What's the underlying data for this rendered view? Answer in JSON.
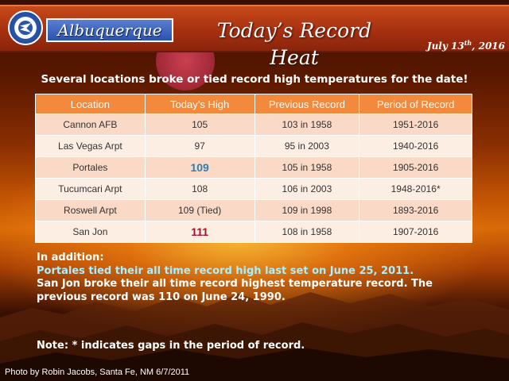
{
  "header": {
    "office": "Albuquerque",
    "title": "Today’s Record Heat",
    "date_prefix": "July 13",
    "date_suffix": "th",
    "date_year": ", 2016"
  },
  "subtitle": "Several locations broke or tied record high temperatures for the date!",
  "table": {
    "columns": [
      "Location",
      "Today’s High",
      "Previous Record",
      "Period of Record"
    ],
    "rows": [
      [
        "Cannon AFB",
        "105",
        "103 in 1958",
        "1951-2016"
      ],
      [
        "Las Vegas Arpt",
        "97",
        "95 in 2003",
        "1940-2016"
      ],
      [
        "Portales",
        "109",
        "105 in 1958",
        "1905-2016"
      ],
      [
        "Tucumcari Arpt",
        "108",
        "106 in 2003",
        "1948-2016*"
      ],
      [
        "Roswell Arpt",
        "109 (Tied)",
        "109 in 1998",
        "1893-2016"
      ],
      [
        "San Jon",
        "111",
        "108 in 1958",
        "1907-2016"
      ]
    ]
  },
  "notes": {
    "lead": "In addition:",
    "line1": "Portales tied their all time record high last set on June 25, 2011.",
    "line2": "San Jon broke their all time record highest temperature record. The previous record was 110 on June 24, 1990."
  },
  "footnote": "Note: * indicates gaps in the period of record.",
  "credit": "Photo by Robin Jacobs, Santa Fe, NM 6/7/2011",
  "colors": {
    "banner": "#a63010",
    "table_header": "#f2893c",
    "highlight_blue": "#2a7fb8",
    "highlight_red": "#a8102c"
  }
}
